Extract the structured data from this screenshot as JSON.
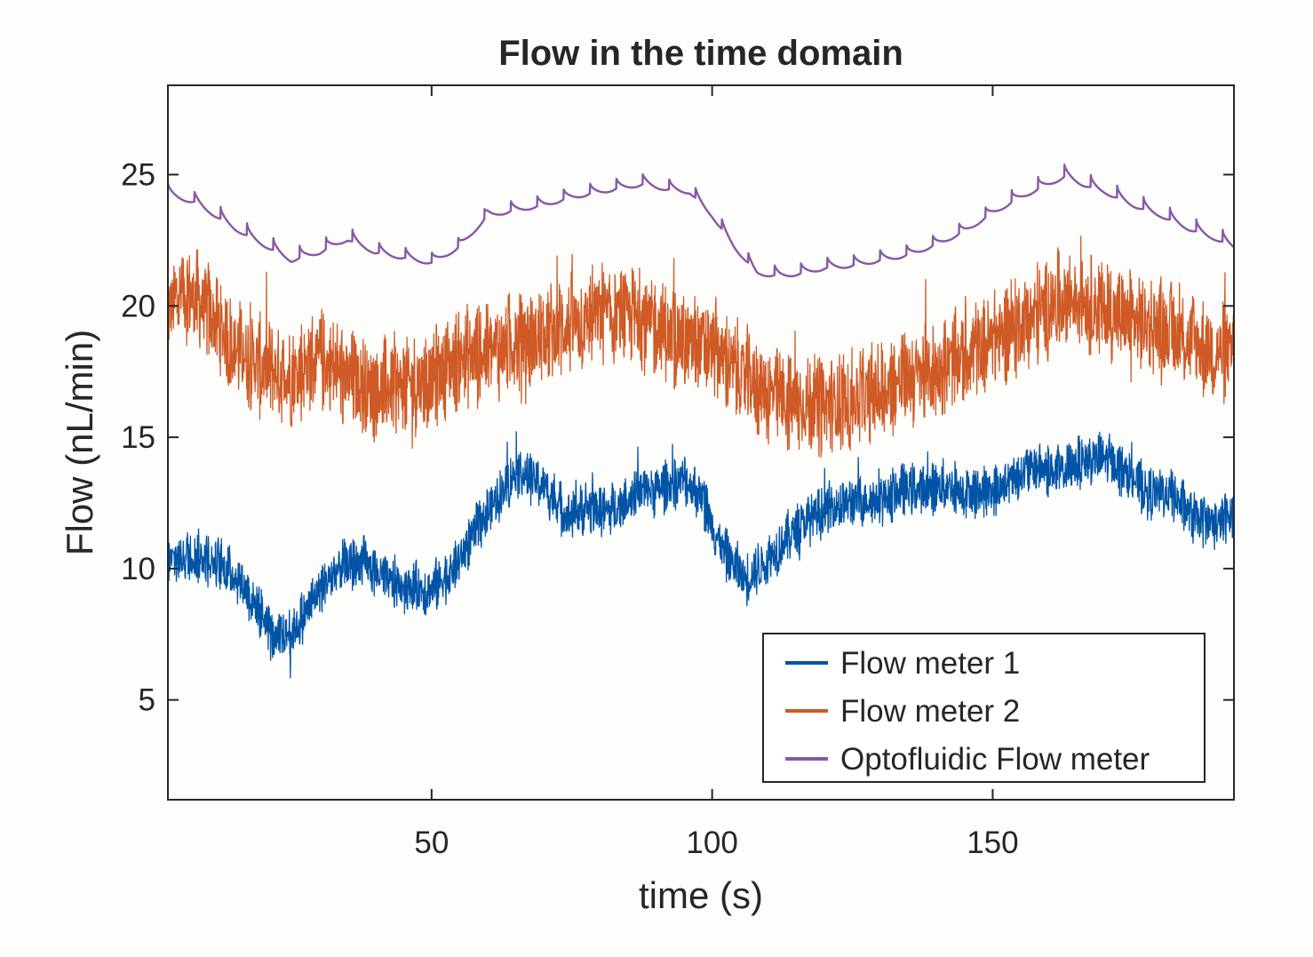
{
  "chart_data": {
    "type": "line",
    "title": "Flow in the time domain",
    "xlabel": "time (s)",
    "ylabel": "Flow (nL/min)",
    "xlim": [
      3,
      193
    ],
    "ylim": [
      1.2,
      28.4
    ],
    "xticks": [
      50,
      100,
      150
    ],
    "yticks": [
      5,
      10,
      15,
      20,
      25
    ],
    "x_tick_labels": [
      "50",
      "100",
      "150"
    ],
    "y_tick_labels": [
      "5",
      "10",
      "15",
      "20",
      "25"
    ],
    "grid": false,
    "legend_position": "bottom-right",
    "series": [
      {
        "name": "Flow meter 1",
        "color": "#0054a6",
        "noise": 1.1,
        "x": [
          3,
          8,
          12,
          16,
          20,
          22,
          26,
          30,
          34,
          38,
          42,
          46,
          50,
          54,
          58,
          62,
          65,
          70,
          74,
          78,
          82,
          86,
          90,
          95,
          98,
          102,
          106,
          110,
          114,
          118,
          122,
          126,
          130,
          134,
          138,
          142,
          146,
          150,
          154,
          158,
          162,
          166,
          170,
          174,
          178,
          182,
          186,
          190,
          193
        ],
        "y": [
          10.3,
          10.5,
          10.2,
          9.5,
          8.2,
          7.2,
          7.8,
          9.2,
          10.1,
          10.2,
          9.5,
          9.3,
          9.2,
          10.0,
          11.5,
          12.8,
          13.7,
          13.2,
          12.0,
          12.3,
          12.2,
          12.9,
          13.0,
          13.4,
          12.8,
          10.6,
          9.6,
          10.4,
          11.3,
          12.0,
          12.4,
          12.6,
          12.6,
          13.0,
          13.0,
          13.2,
          12.9,
          12.9,
          13.5,
          13.9,
          13.6,
          14.1,
          14.2,
          13.6,
          12.9,
          12.8,
          11.9,
          11.7,
          12.1
        ]
      },
      {
        "name": "Flow meter 2",
        "color": "#cf5a25",
        "noise": 2.1,
        "x": [
          3,
          6,
          10,
          15,
          20,
          25,
          30,
          35,
          40,
          45,
          50,
          55,
          60,
          65,
          70,
          75,
          80,
          85,
          90,
          95,
          100,
          105,
          110,
          115,
          120,
          125,
          130,
          135,
          140,
          145,
          150,
          155,
          160,
          165,
          170,
          175,
          180,
          185,
          190,
          193
        ],
        "y": [
          19.8,
          20.6,
          19.8,
          18.4,
          17.6,
          17.4,
          18.0,
          17.2,
          16.8,
          17.0,
          17.2,
          18.0,
          18.2,
          18.6,
          18.8,
          19.3,
          19.7,
          19.6,
          19.2,
          18.6,
          18.4,
          17.4,
          16.7,
          16.2,
          16.2,
          16.4,
          16.7,
          17.3,
          17.5,
          18.1,
          18.7,
          19.3,
          20.0,
          20.4,
          19.8,
          19.4,
          19.2,
          18.6,
          18.3,
          18.2
        ]
      },
      {
        "name": "Optofluidic Flow meter",
        "color": "#8a57a8",
        "noise": 0,
        "x": [
          3,
          8,
          15,
          20,
          25,
          30,
          35,
          40,
          45,
          50,
          55,
          60,
          65,
          70,
          75,
          80,
          85,
          88,
          92,
          96,
          100,
          104,
          108,
          112,
          116,
          120,
          125,
          130,
          135,
          140,
          145,
          150,
          155,
          160,
          163,
          166,
          170,
          175,
          180,
          185,
          190,
          193
        ],
        "y": [
          24.3,
          24.0,
          23.0,
          22.4,
          21.8,
          22.1,
          22.6,
          22.1,
          21.9,
          21.7,
          22.3,
          23.5,
          23.7,
          23.9,
          24.2,
          24.4,
          24.6,
          24.7,
          24.5,
          24.4,
          23.5,
          22.3,
          21.3,
          21.2,
          21.3,
          21.5,
          21.6,
          21.8,
          22.0,
          22.4,
          22.9,
          23.6,
          24.2,
          24.7,
          25.0,
          24.7,
          24.4,
          23.9,
          23.5,
          23.0,
          22.6,
          22.3
        ]
      }
    ]
  }
}
